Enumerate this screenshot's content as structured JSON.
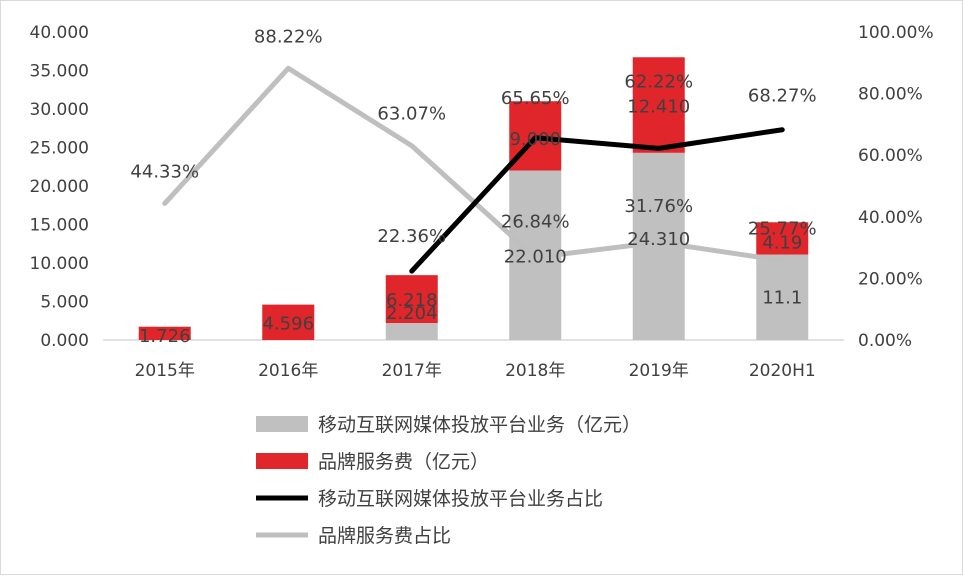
{
  "chart_data": {
    "type": "bar",
    "categories": [
      "2015年",
      "2016年",
      "2017年",
      "2018年",
      "2019年",
      "2020H1"
    ],
    "y_left": {
      "min": 0,
      "max": 40,
      "step": 5,
      "tick_labels": [
        "0.000",
        "5.000",
        "10.000",
        "15.000",
        "20.000",
        "25.000",
        "30.000",
        "35.000",
        "40.000"
      ]
    },
    "y_right": {
      "min": 0,
      "max": 100,
      "step": 20,
      "tick_labels": [
        "0.00%",
        "20.00%",
        "40.00%",
        "60.00%",
        "80.00%",
        "100.00%"
      ]
    },
    "bar_series": [
      {
        "name": "移动互联网媒体投放平台业务（亿元）",
        "color": "#c0c0c0",
        "values": [
          0,
          0,
          2.204,
          22.01,
          24.31,
          11.1
        ],
        "labels": [
          "",
          "",
          "2.204",
          "22.010",
          "24.310",
          "11.1"
        ]
      },
      {
        "name": "品牌服务费（亿元）",
        "color": "#e0262b",
        "values": [
          1.726,
          4.596,
          6.218,
          9.0,
          12.41,
          4.19
        ],
        "labels": [
          "1.726",
          "4.596",
          "6.218",
          "9.000",
          "12.410",
          "4.19"
        ]
      }
    ],
    "line_series": [
      {
        "name": "移动互联网媒体投放平台业务占比",
        "color": "#000000",
        "values": [
          null,
          null,
          22.36,
          65.65,
          62.22,
          68.27
        ],
        "labels": [
          "",
          "",
          "22.36%",
          "65.65%",
          "62.22%",
          "68.27%"
        ]
      },
      {
        "name": "品牌服务费占比",
        "color": "#bfbfbf",
        "values": [
          44.33,
          88.22,
          63.07,
          26.84,
          31.76,
          25.77
        ],
        "labels": [
          "44.33%",
          "88.22%",
          "63.07%",
          "26.84%",
          "31.76%",
          "25.77%"
        ]
      }
    ],
    "legend": {
      "position": "bottom",
      "entries": [
        {
          "name": "移动互联网媒体投放平台业务（亿元）",
          "kind": "bar",
          "color": "#c0c0c0"
        },
        {
          "name": "品牌服务费（亿元）",
          "kind": "bar",
          "color": "#e0262b"
        },
        {
          "name": "移动互联网媒体投放平台业务占比",
          "kind": "line",
          "color": "#000000"
        },
        {
          "name": "品牌服务费占比",
          "kind": "line",
          "color": "#bfbfbf"
        }
      ]
    },
    "grid": false
  }
}
